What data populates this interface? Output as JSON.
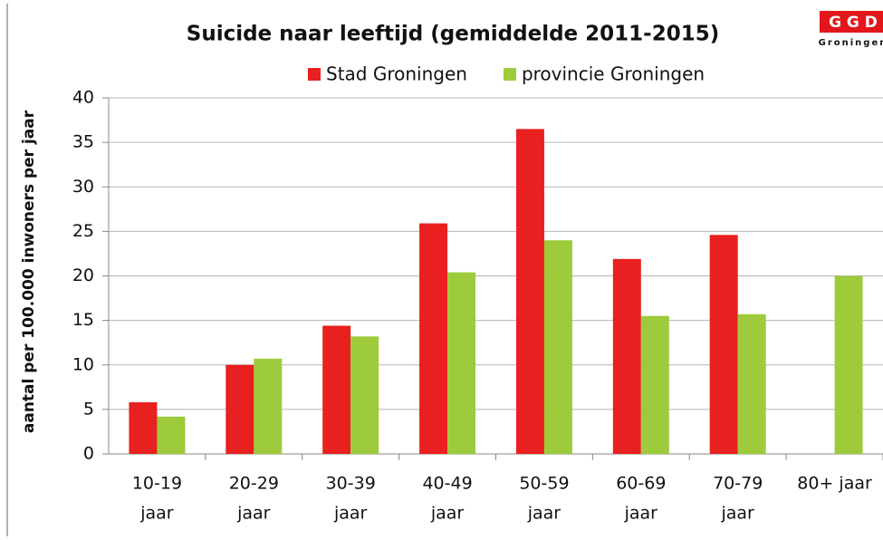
{
  "chart_data": {
    "type": "bar",
    "title": "Suicide naar leeftijd (gemiddelde 2011-2015)",
    "logo": {
      "name": "G G D",
      "subtitle": "Groningen"
    },
    "y_label": "aantal per 100.000 inwoners per jaar",
    "categories": [
      [
        "10-19",
        "jaar"
      ],
      [
        "20-29",
        "jaar"
      ],
      [
        "30-39",
        "jaar"
      ],
      [
        "40-49",
        "jaar"
      ],
      [
        "50-59",
        "jaar"
      ],
      [
        "60-69",
        "jaar"
      ],
      [
        "70-79",
        "jaar"
      ],
      [
        "80+ jaar"
      ]
    ],
    "series": [
      {
        "name": "Stad Groningen",
        "color": "#e8201f",
        "values": [
          5.8,
          10,
          14.4,
          25.9,
          36.5,
          21.9,
          24.6,
          null
        ]
      },
      {
        "name": "provincie Groningen",
        "color": "#9dcb3c",
        "values": [
          4.2,
          10.7,
          13.2,
          20.4,
          24,
          15.5,
          15.7,
          20
        ]
      }
    ],
    "ylim": [
      0,
      40
    ],
    "yticks": [
      0,
      5,
      10,
      15,
      20,
      25,
      30,
      35,
      40
    ],
    "grid": true,
    "legend": "top"
  }
}
